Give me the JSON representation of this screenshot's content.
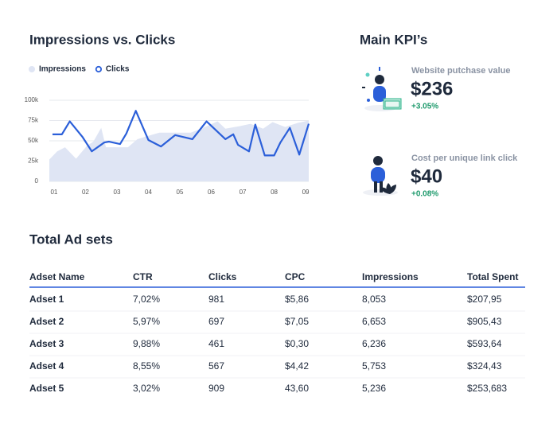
{
  "chart_data": {
    "type": "line",
    "title": "Impressions vs. Clicks",
    "series": [
      {
        "name": "Impressions",
        "color": "#dfe5f4",
        "fill": "area",
        "x": [
          0.85,
          1.1,
          1.35,
          1.7,
          2.05,
          2.25,
          2.5,
          2.65,
          3.05,
          3.35,
          3.65,
          3.9,
          4.35,
          4.85,
          5.35,
          5.8,
          6.2,
          6.45,
          6.9,
          7.25,
          7.65,
          7.95,
          8.35,
          8.75,
          9.1
        ],
        "values": [
          27000,
          37000,
          42000,
          28000,
          44000,
          49000,
          66000,
          42000,
          42000,
          42000,
          52000,
          55000,
          60000,
          60000,
          60000,
          67000,
          74000,
          65000,
          68000,
          71000,
          65000,
          73000,
          67000,
          72000,
          75000
        ]
      },
      {
        "name": "Clicks",
        "color": "#2b5fd9",
        "fill": "line",
        "x": [
          0.95,
          1.25,
          1.5,
          1.9,
          2.2,
          2.6,
          2.75,
          3.1,
          3.3,
          3.6,
          4.0,
          4.4,
          4.85,
          5.4,
          5.85,
          6.45,
          6.7,
          6.85,
          7.2,
          7.4,
          7.7,
          8.0,
          8.2,
          8.5,
          8.8,
          9.1
        ],
        "values": [
          58000,
          58000,
          74000,
          55000,
          37000,
          48000,
          49000,
          46000,
          59000,
          87000,
          51000,
          43000,
          57000,
          52000,
          74000,
          52000,
          58000,
          45000,
          37000,
          70000,
          32000,
          32000,
          48000,
          66000,
          33000,
          71000
        ]
      }
    ],
    "xlim": [
      0.85,
      9.1
    ],
    "xticks": [
      {
        "value": 1,
        "label": "01"
      },
      {
        "value": 2,
        "label": "02"
      },
      {
        "value": 3,
        "label": "03"
      },
      {
        "value": 4,
        "label": "04"
      },
      {
        "value": 5,
        "label": "05"
      },
      {
        "value": 6,
        "label": "06"
      },
      {
        "value": 7,
        "label": "07"
      },
      {
        "value": 8,
        "label": "08"
      },
      {
        "value": 9,
        "label": "09"
      }
    ],
    "ylim": [
      0,
      100000
    ],
    "yticks": [
      0,
      {
        "value": 25000,
        "label": "25k"
      },
      {
        "value": 50000,
        "label": "50k"
      },
      {
        "value": 75000,
        "label": "75k"
      },
      {
        "value": 100000,
        "label": "100k"
      }
    ],
    "grid": true
  },
  "kpis": {
    "title": "Main KPI’s",
    "items": [
      {
        "label": "Website putchase value",
        "value": "$236",
        "change": "+3.05%"
      },
      {
        "label": "Cost per unique link click",
        "value": "$40",
        "change": "+0.08%"
      }
    ]
  },
  "table": {
    "title": "Total Ad sets",
    "columns": [
      "Adset Name",
      "CTR",
      "Clicks",
      "CPC",
      "Impressions",
      "Total Spent"
    ],
    "rows": [
      [
        "Adset 1",
        "7,02%",
        "981",
        "$5,86",
        "8,053",
        "$207,95"
      ],
      [
        "Adset 2",
        "5,97%",
        "697",
        "$7,05",
        "6,653",
        "$905,43"
      ],
      [
        "Adset 3",
        "9,88%",
        "461",
        "$0,30",
        "6,236",
        "$593,64"
      ],
      [
        "Adset 4",
        "8,55%",
        "567",
        "$4,42",
        "5,753",
        "$324,43"
      ],
      [
        "Adset 5",
        "3,02%",
        "909",
        "43,60",
        "5,236",
        "$253,683"
      ]
    ]
  }
}
